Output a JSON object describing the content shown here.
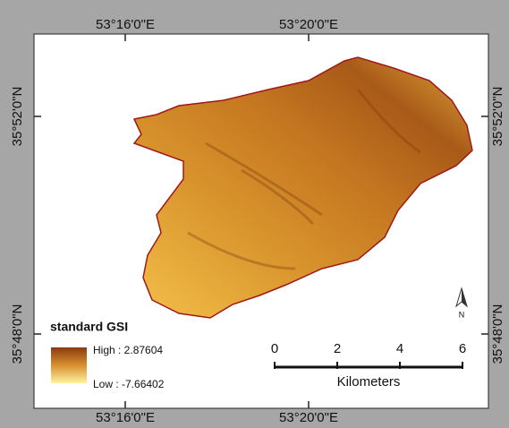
{
  "map": {
    "grid_labels": {
      "top": [
        "53°16'0\"E",
        "53°20'0\"E"
      ],
      "bottom": [
        "53°16'0\"E",
        "53°20'0\"E"
      ],
      "left": [
        "35°52'0\"N",
        "35°48'0\"N"
      ],
      "right": [
        "35°52'0\"N",
        "35°48'0\"N"
      ]
    },
    "legend": {
      "title": "standard GSI",
      "high": "High : 2.87604",
      "low": "Low : -7.66402"
    },
    "scale_bar": {
      "ticks": [
        0,
        2,
        4,
        6
      ],
      "unit": "Kilometers"
    },
    "north_arrow": "N"
  }
}
